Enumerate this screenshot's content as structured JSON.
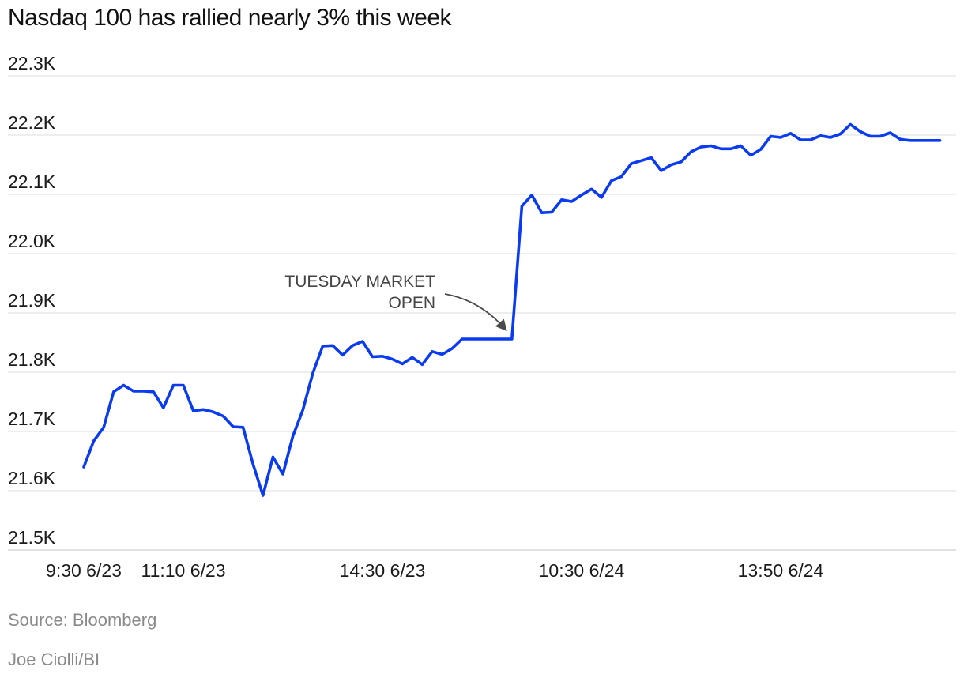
{
  "chart_data": {
    "type": "line",
    "title": "Nasdaq 100 has rallied nearly 3% this week",
    "xlabel": "",
    "ylabel": "",
    "ylim": [
      21500,
      22300
    ],
    "y_ticks": [
      {
        "value": 22300,
        "label": "22.3K"
      },
      {
        "value": 22200,
        "label": "22.2K"
      },
      {
        "value": 22100,
        "label": "22.1K"
      },
      {
        "value": 22000,
        "label": "22.0K"
      },
      {
        "value": 21900,
        "label": "21.9K"
      },
      {
        "value": 21800,
        "label": "21.8K"
      },
      {
        "value": 21700,
        "label": "21.7K"
      },
      {
        "value": 21600,
        "label": "21.6K"
      },
      {
        "value": 21500,
        "label": "21.5K"
      }
    ],
    "x_ticks": [
      {
        "index": 0,
        "label": "9:30 6/23"
      },
      {
        "index": 10,
        "label": "11:10 6/23"
      },
      {
        "index": 30,
        "label": "14:30 6/23"
      },
      {
        "index": 50,
        "label": "10:30 6/24"
      },
      {
        "index": 70,
        "label": "13:50 6/24"
      }
    ],
    "grid": true,
    "line_color": "#0a3bf0",
    "series": [
      {
        "values": [
          21640,
          21684,
          21707,
          21767,
          21778,
          21768,
          21768,
          21767,
          21740,
          21778,
          21778,
          21735,
          21737,
          21733,
          21726,
          21708,
          21707,
          21645,
          21592,
          21657,
          21628,
          21692,
          21736,
          21798,
          21844,
          21845,
          21829,
          21845,
          21852,
          21826,
          21827,
          21822,
          21814,
          21825,
          21813,
          21835,
          21830,
          21840,
          21856,
          21856,
          21856,
          21856,
          21856,
          21856,
          22080,
          22099,
          22069,
          22070,
          22091,
          22088,
          22099,
          22109,
          22095,
          22123,
          22130,
          22152,
          22157,
          22162,
          22140,
          22150,
          22155,
          22172,
          22180,
          22182,
          22177,
          22177,
          22182,
          22166,
          22176,
          22198,
          22196,
          22203,
          22192,
          22192,
          22199,
          22196,
          22202,
          22218,
          22206,
          22198,
          22198,
          22204,
          22193,
          22191,
          22191,
          22191,
          22191
        ]
      }
    ],
    "annotation": {
      "line1": "TUESDAY MARKET",
      "line2": "OPEN",
      "target_index": 43
    }
  },
  "footer": {
    "source": "Source: Bloomberg",
    "credit": "Joe Ciolli/BI"
  }
}
